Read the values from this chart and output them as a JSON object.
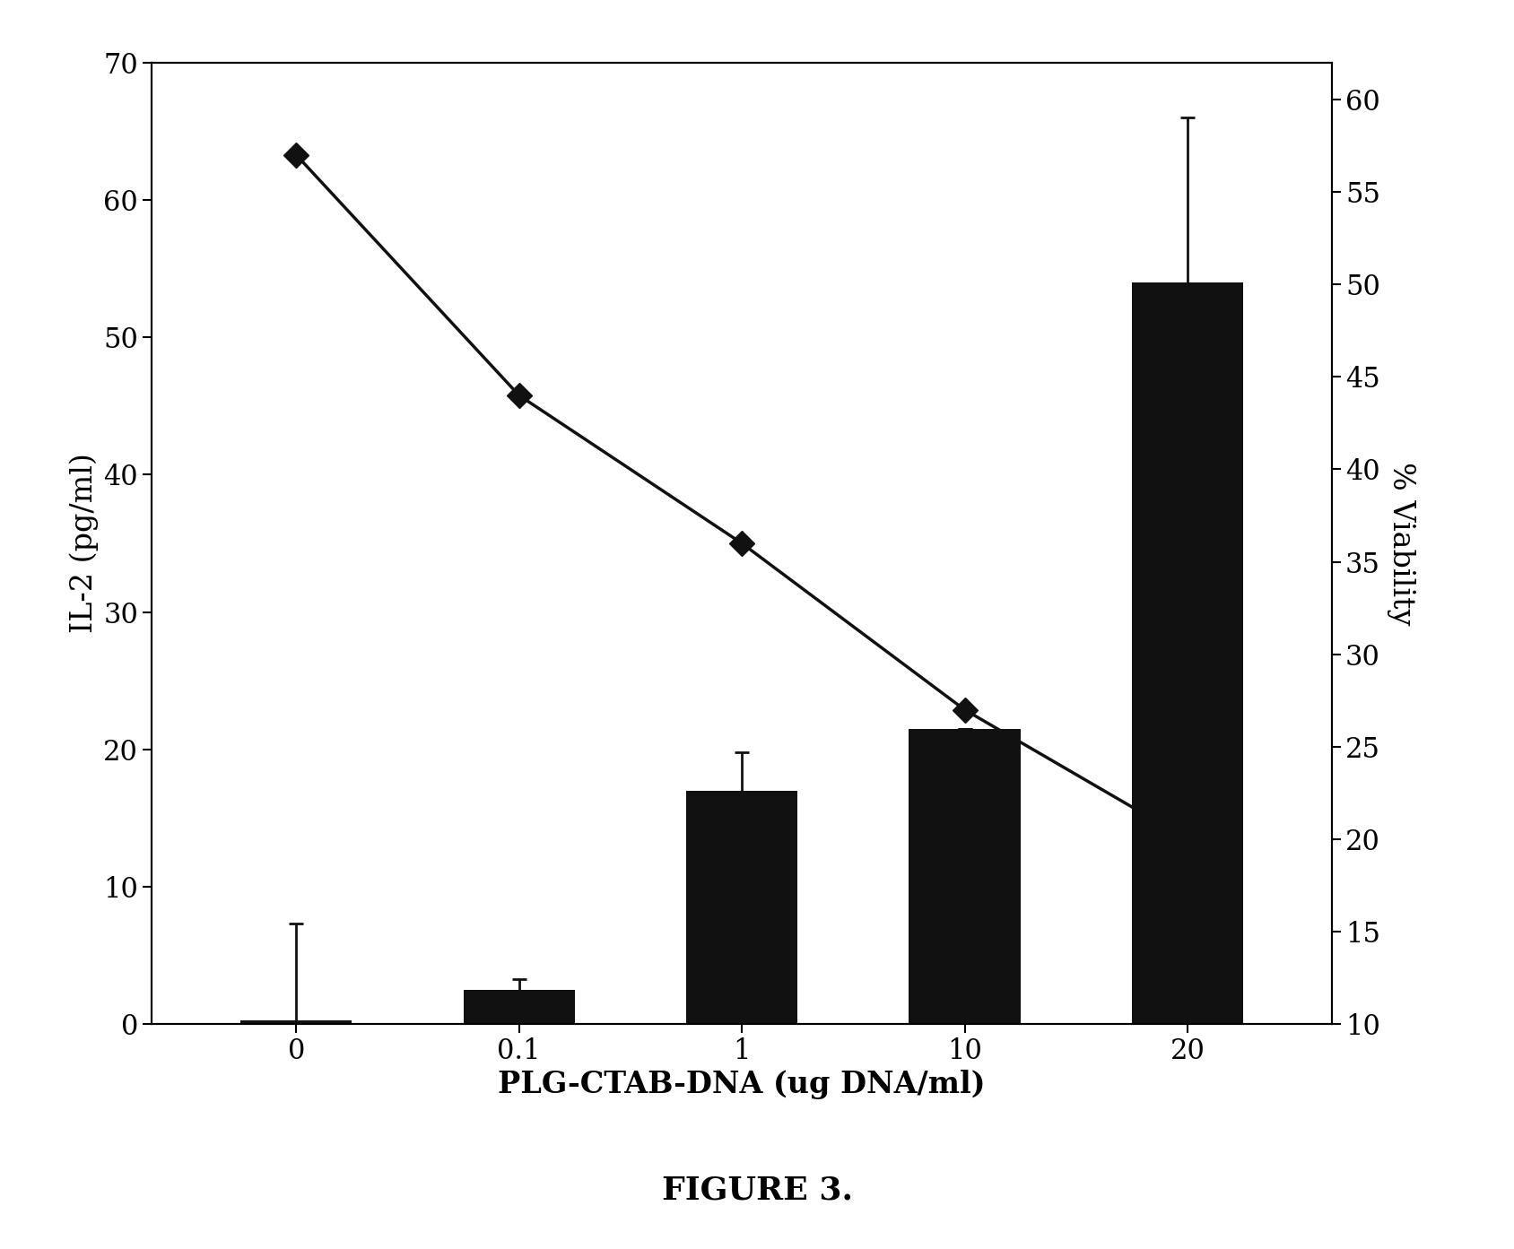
{
  "x_labels": [
    "0",
    "0.1",
    "1",
    "10",
    "20"
  ],
  "x_positions": [
    0,
    1,
    2,
    3,
    4
  ],
  "bar_values": [
    0.3,
    2.5,
    17.0,
    21.5,
    54.0
  ],
  "bar_errors": [
    7.0,
    0.8,
    2.8,
    0.0,
    12.0
  ],
  "bar_color": "#111111",
  "bar_error_color": "#111111",
  "line_values": [
    57.0,
    44.0,
    36.0,
    27.0,
    20.0
  ],
  "left_ylabel": "IL-2 (pg/ml)",
  "right_ylabel": "% Viability",
  "xlabel": "PLG-CTAB-DNA (ug DNA/ml)",
  "figure_label": "FIGURE 3.",
  "left_ylim": [
    0,
    70
  ],
  "left_yticks": [
    0,
    10,
    20,
    30,
    40,
    50,
    60,
    70
  ],
  "right_ylim": [
    10,
    62
  ],
  "right_yticks": [
    10,
    15,
    20,
    25,
    30,
    35,
    40,
    45,
    50,
    55,
    60
  ],
  "bar_width": 0.5,
  "line_color": "#111111",
  "line_marker": "D",
  "line_markersize": 14,
  "line_linewidth": 2.5,
  "background_color": "#ffffff",
  "figure_label_fontsize": 26,
  "label_fontsize": 24,
  "tick_fontsize": 22
}
